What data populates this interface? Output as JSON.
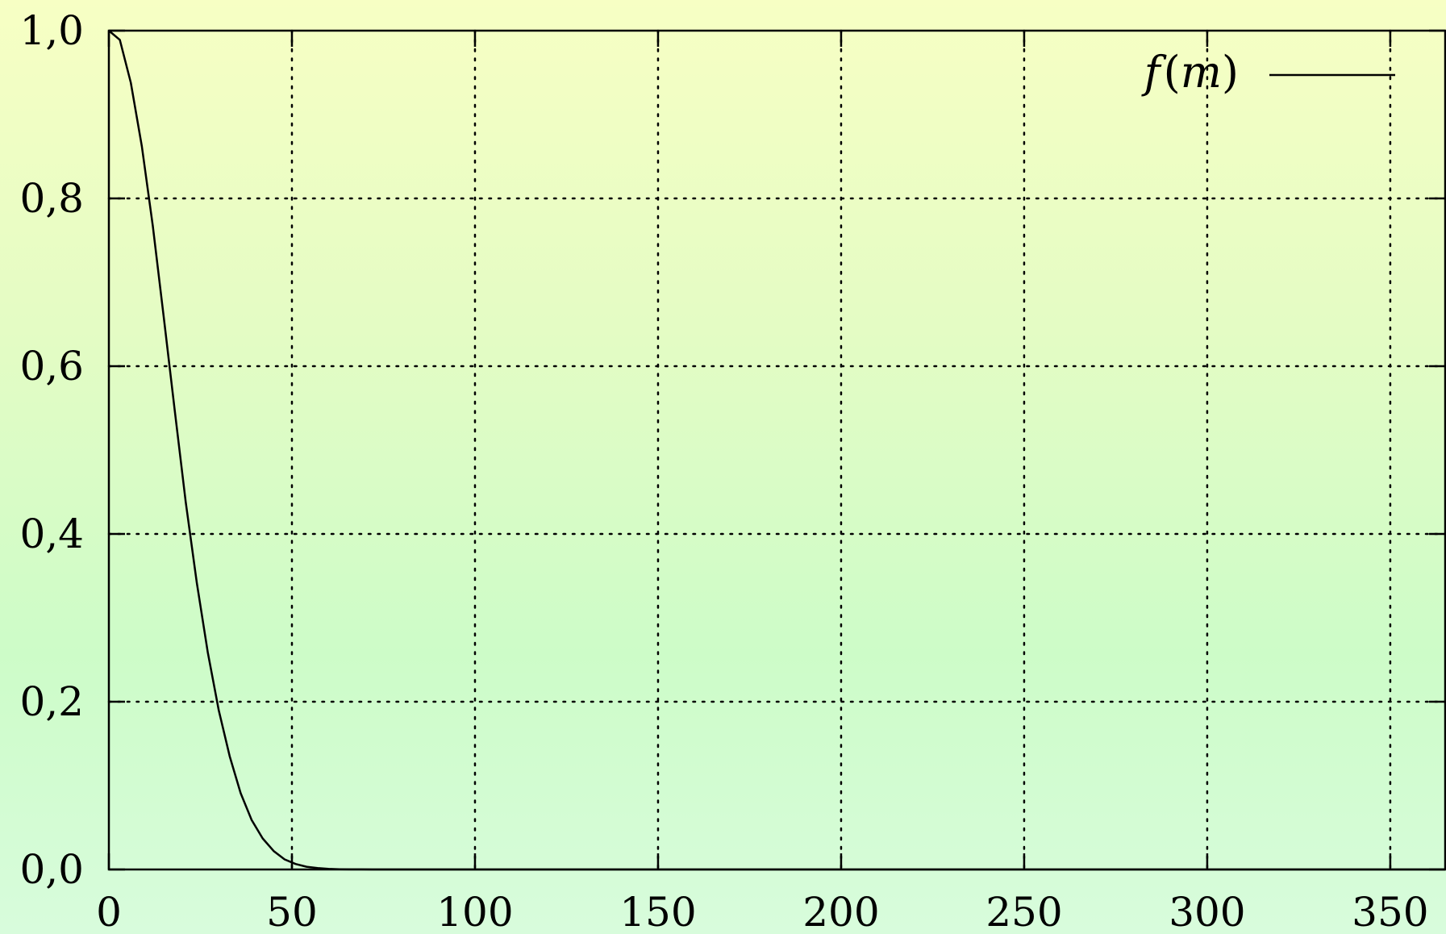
{
  "chart_data": {
    "type": "line",
    "title": "",
    "xlabel": "",
    "ylabel": "",
    "xlim": [
      0,
      365
    ],
    "ylim": [
      0,
      1.0
    ],
    "x_ticks": [
      0,
      50,
      100,
      150,
      200,
      250,
      300,
      350
    ],
    "x_tick_labels": [
      "0",
      "50",
      "100",
      "150",
      "200",
      "250",
      "300",
      "350"
    ],
    "y_ticks": [
      0,
      0.2,
      0.4,
      0.6,
      0.8,
      1.0
    ],
    "y_tick_labels": [
      "0,0",
      "0,2",
      "0,4",
      "0,6",
      "0,8",
      "1,0"
    ],
    "grid": true,
    "grid_style": "dotted",
    "legend_position": "top-right",
    "colors": {
      "line": "#000000",
      "grid": "#000000",
      "axis": "#000000"
    },
    "series": [
      {
        "name": "f(m)",
        "legend_label": {
          "func": "f",
          "open": "(",
          "arg": "m",
          "close": ")"
        },
        "x": [
          0,
          3,
          6,
          9,
          12,
          15,
          18,
          21,
          24,
          27,
          30,
          33,
          36,
          39,
          42,
          45,
          48,
          51,
          54,
          57,
          60,
          63,
          66,
          69,
          72,
          75,
          80,
          90,
          100,
          150,
          200,
          250,
          300,
          350,
          365
        ],
        "y": [
          1.0,
          0.989,
          0.938,
          0.862,
          0.767,
          0.658,
          0.547,
          0.438,
          0.342,
          0.259,
          0.19,
          0.135,
          0.091,
          0.059,
          0.037,
          0.022,
          0.012,
          0.0065,
          0.0033,
          0.0016,
          0.0007,
          0.0003,
          0.0001,
          5e-05,
          2e-05,
          0.0,
          0.0,
          0.0,
          0.0,
          0.0,
          0.0,
          0.0,
          0.0,
          0.0,
          0.0
        ]
      }
    ]
  }
}
